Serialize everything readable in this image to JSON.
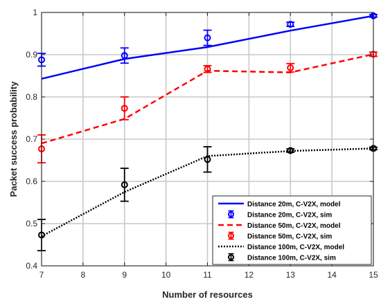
{
  "chart_data": {
    "type": "line",
    "title": "",
    "xlabel": "Number of resources",
    "ylabel": "Packet success probability",
    "xlim": [
      7,
      15
    ],
    "ylim": [
      0.4,
      1.0
    ],
    "xticks": [
      7,
      8,
      9,
      10,
      11,
      12,
      13,
      14,
      15
    ],
    "yticks": [
      0.4,
      0.5,
      0.6,
      0.7,
      0.8,
      0.9,
      1.0
    ],
    "xtick_labels": [
      "7",
      "8",
      "9",
      "10",
      "11",
      "12",
      "13",
      "14",
      "15"
    ],
    "ytick_labels": [
      "0.4",
      "0.5",
      "0.6",
      "0.7",
      "0.8",
      "0.9",
      "1"
    ],
    "grid": true,
    "legend_position": "bottom-right",
    "series": [
      {
        "name": "Distance 20m, C-V2X, model",
        "kind": "line",
        "style": "solid",
        "color": "#0000ff",
        "x": [
          7,
          9,
          11,
          13,
          15
        ],
        "y": [
          0.843,
          0.89,
          0.918,
          0.957,
          0.992
        ]
      },
      {
        "name": "Distance 20m, C-V2X, sim",
        "kind": "errorbar",
        "color": "#0000ff",
        "x": [
          7,
          9,
          11,
          13,
          15
        ],
        "y": [
          0.888,
          0.898,
          0.94,
          0.972,
          0.992
        ],
        "err": [
          0.015,
          0.018,
          0.018,
          0.005,
          0.003
        ]
      },
      {
        "name": "Distance 50m, C-V2X, model",
        "kind": "line",
        "style": "dashed",
        "color": "#ff0000",
        "x": [
          7,
          9,
          11,
          13,
          15
        ],
        "y": [
          0.69,
          0.748,
          0.862,
          0.858,
          0.901
        ]
      },
      {
        "name": "Distance 50m, C-V2X, sim",
        "kind": "errorbar",
        "color": "#ff0000",
        "x": [
          7,
          9,
          11,
          13,
          15
        ],
        "y": [
          0.677,
          0.773,
          0.866,
          0.869,
          0.901
        ],
        "err": [
          0.033,
          0.027,
          0.008,
          0.01,
          0.005
        ]
      },
      {
        "name": "Distance 100m, C-V2X, model",
        "kind": "line",
        "style": "dotted",
        "color": "#000000",
        "x": [
          7,
          9,
          11,
          13,
          15
        ],
        "y": [
          0.47,
          0.575,
          0.66,
          0.672,
          0.678
        ]
      },
      {
        "name": "Distance 100m, C-V2X, sim",
        "kind": "errorbar",
        "color": "#000000",
        "x": [
          7,
          9,
          11,
          13,
          15
        ],
        "y": [
          0.473,
          0.592,
          0.652,
          0.673,
          0.678
        ],
        "err": [
          0.037,
          0.039,
          0.03,
          0.004,
          0.003
        ]
      }
    ]
  }
}
